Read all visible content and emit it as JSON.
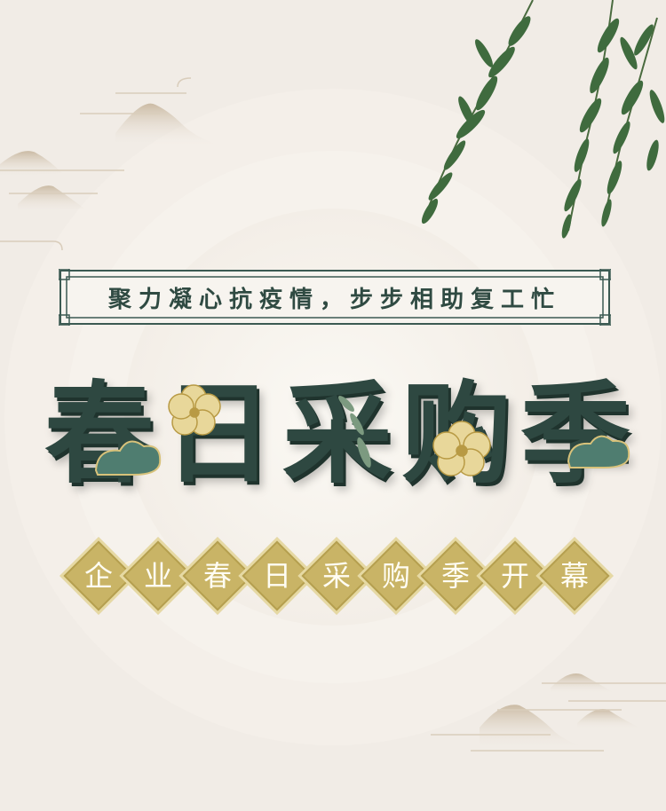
{
  "tagline": "聚力凝心抗疫情，步步相助复工忙",
  "title": [
    "春",
    "日",
    "采",
    "购",
    "季"
  ],
  "subtitle": [
    "企",
    "业",
    "春",
    "日",
    "采",
    "购",
    "季",
    "开",
    "幕"
  ],
  "colors": {
    "background": "#f1ece6",
    "title": "#2e4841",
    "gold": "#c9b466",
    "leaf": "#3f6b3e",
    "mountain": "#d8cbb8"
  }
}
